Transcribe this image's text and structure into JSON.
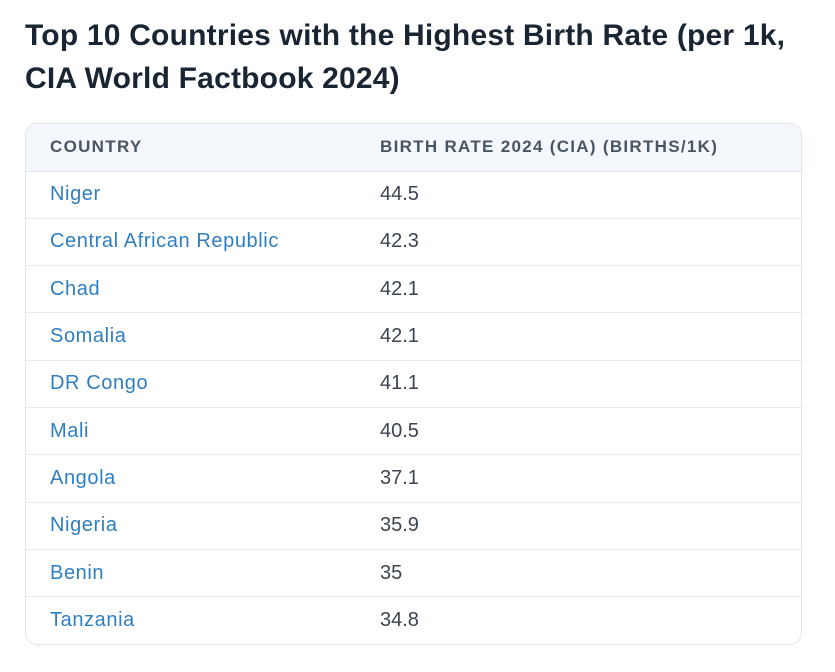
{
  "page": {
    "title": "Top 10 Countries with the Highest Birth Rate (per 1k, CIA World Factbook 2024)"
  },
  "table": {
    "headers": [
      "COUNTRY",
      "BIRTH RATE 2024 (CIA) (BIRTHS/1K)"
    ],
    "rows": [
      {
        "country": "Niger",
        "rate": "44.5"
      },
      {
        "country": "Central African Republic",
        "rate": "42.3"
      },
      {
        "country": "Chad",
        "rate": "42.1"
      },
      {
        "country": "Somalia",
        "rate": "42.1"
      },
      {
        "country": "DR Congo",
        "rate": "41.1"
      },
      {
        "country": "Mali",
        "rate": "40.5"
      },
      {
        "country": "Angola",
        "rate": "37.1"
      },
      {
        "country": "Nigeria",
        "rate": "35.9"
      },
      {
        "country": "Benin",
        "rate": "35"
      },
      {
        "country": "Tanzania",
        "rate": "34.8"
      }
    ]
  },
  "colors": {
    "link": "#2f7fc0",
    "header_bg": "#f4f8fc",
    "title": "#1a2533"
  }
}
